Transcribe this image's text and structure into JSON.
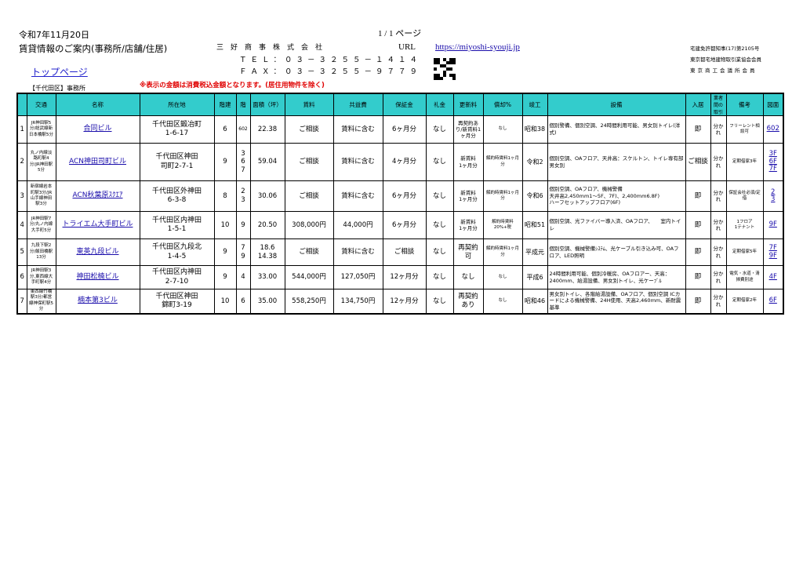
{
  "header": {
    "date": "令和7年11月20日",
    "title": "賃貸情報のご案内(事務所/店舗/住居)",
    "top_link": "トップページ",
    "category": "【千代田区】事務所",
    "notice": "※表示の金額は消費税込金額となります。(居住用物件を除く)",
    "company": "三好商事株式会社",
    "tel": "ＴＥＬ：０３－３２５５－１４１４",
    "fax": "ＦＡＸ：０３－３２５５－９７７９",
    "page": "1 / 1 ページ",
    "url_label": "URL",
    "url": "https://miyoshi-syouji.jp",
    "license": [
      "宅建免許都知事(17)第2105号",
      "東京都宅地建物取引業協会会員",
      "東京商工会議所会員"
    ]
  },
  "table": {
    "columns": [
      "",
      "交通",
      "名称",
      "所在地",
      "階建",
      "階",
      "面積（坪）",
      "賃料",
      "共益費",
      "保証金",
      "礼金",
      "更新料",
      "償却%",
      "竣工",
      "設備",
      "入居",
      "業者間の取引",
      "備考",
      "図面"
    ],
    "rows": [
      {
        "no": "1",
        "access": "JR神田駅5分/総武線新日本橋駅5分",
        "name": "合同ビル",
        "address": "千代田区鍛冶町\n1-6-17",
        "stories": "6",
        "floor": "602",
        "area": "22.38",
        "rent": "ご相談",
        "fee": "賃料に含む",
        "deposit": "6ヶ月分",
        "key": "なし",
        "renewal": "再契約あり/新賃料1ヶ月分",
        "amort": "なし",
        "built": "昭和38",
        "equip": "個別警備、個別空調、24時間利用可能、男女別トイレ(洋式)",
        "move": "即",
        "broker": "分かれ",
        "note": "フリーレント相談可",
        "plans": [
          "602"
        ]
      },
      {
        "no": "2",
        "access": "丸ノ内線淡路町駅4分/JR神田駅5分",
        "name": "ACN神田司町ビル",
        "address": "千代田区神田\n司町2-7-1",
        "stories": "9",
        "floor": "3\n6\n7",
        "area": "59.04",
        "rent": "ご相談",
        "fee": "賃料に含む",
        "deposit": "4ヶ月分",
        "key": "なし",
        "renewal": "新賃料\n1ヶ月分",
        "amort": "解約時賃料1ヶ月分",
        "built": "令和2",
        "equip": "個別空調、OAフロア、天井高：スケルトン、トイレ専有部　男女別",
        "move": "ご相談",
        "broker": "分かれ",
        "note": "定期借家3年",
        "plans": [
          "3F",
          "6F",
          "7F"
        ]
      },
      {
        "no": "3",
        "access": "新宿線岩本町駅3分/JR山手線神田駅3分",
        "name": "ACN秋葉原ｽｸｴｱ",
        "address": "千代田区外神田\n6-3-8",
        "stories": "8",
        "floor": "2\n3",
        "area": "30.06",
        "rent": "ご相談",
        "fee": "賃料に含む",
        "deposit": "6ヶ月分",
        "key": "なし",
        "renewal": "新賃料\n1ヶ月分",
        "amort": "解約時賃料1ヶ月分",
        "built": "令和6",
        "equip": "個別空調、OAフロア、機械警備\n天井高2,450mm1～5F、7F)、2,400mm6.8F)\nハーフセットアップフロア(6F)",
        "move": "即",
        "broker": "分かれ",
        "note": "保証会社必須/定借",
        "plans": [
          "2",
          "3"
        ]
      },
      {
        "no": "4",
        "access": "JR神田駅7分/丸ノ内線大手町5分",
        "name": "トライエム大手町ビル",
        "address": "千代田区内神田\n1-5-1",
        "stories": "10",
        "floor": "9",
        "area": "20.50",
        "rent": "308,000円",
        "fee": "44,000円",
        "deposit": "6ヶ月分",
        "key": "なし",
        "renewal": "新賃料\n1ヶ月分",
        "amort": "解約時賃料20%+税",
        "built": "昭和51",
        "equip": "個別空調、光ファイバー導入済、OAフロア、　　室内トイレ",
        "move": "即",
        "broker": "分かれ",
        "note": "1フロア\n1テナント",
        "plans": [
          "9F"
        ]
      },
      {
        "no": "5",
        "access": "九段下駅2分/飯田橋駅13分",
        "name": "東英九段ビル",
        "address": "千代田区九段北\n1-4-5",
        "stories": "9",
        "floor": "7\n9",
        "area": "18.6\n14.38",
        "rent": "ご相談",
        "fee": "賃料に含む",
        "deposit": "ご相談",
        "key": "なし",
        "renewal": "再契約可",
        "amort": "解約時賃料1ヶ月分",
        "built": "平成元",
        "equip": "個別空調、機械警備ｼｽﾃﾑ、光ケーブル引き込み可、OAフロア、LED照明",
        "move": "即",
        "broker": "分かれ",
        "note": "定期借家5年",
        "plans": [
          "7F",
          "9F"
        ]
      },
      {
        "no": "6",
        "access": "JR神田駅3分,東西線大手町駅4分",
        "name": "神田松楠ビル",
        "address": "千代田区内神田\n2-7-10",
        "stories": "9",
        "floor": "4",
        "area": "33.00",
        "rent": "544,000円",
        "fee": "127,050円",
        "deposit": "12ヶ月分",
        "key": "なし",
        "renewal": "なし",
        "amort": "なし",
        "built": "平成6",
        "equip": "24時間利用可能、個別冷暖房、OAフロアー、天高：2400mm、給湯設備、男女別トイレ、光ケーﾌﾞﾙ",
        "move": "即",
        "broker": "分かれ",
        "note": "電気・水道・清掃費別途",
        "plans": [
          "4F"
        ]
      },
      {
        "no": "7",
        "access": "東西線竹橋駅3分/都営線神保町駅5分",
        "name": "楠本第3ビル",
        "address": "千代田区神田\n錦町3-19",
        "stories": "10",
        "floor": "6",
        "area": "35.00",
        "rent": "558,250円",
        "fee": "134,750円",
        "deposit": "12ヶ月分",
        "key": "なし",
        "renewal": "再契約あり",
        "amort": "なし",
        "built": "昭和46",
        "equip": "男女別トイレ、各階給湯設備、OAフロア、個別空調 ICカードによる機械警備、24H使用、天高2,460mm、新耐震基準",
        "move": "即",
        "broker": "分かれ",
        "note": "定期借家2年",
        "plans": [
          "6F"
        ]
      }
    ]
  },
  "colors": {
    "header_bg": "#33cccc",
    "notice": "#e00000",
    "link": "#1a0dab"
  }
}
